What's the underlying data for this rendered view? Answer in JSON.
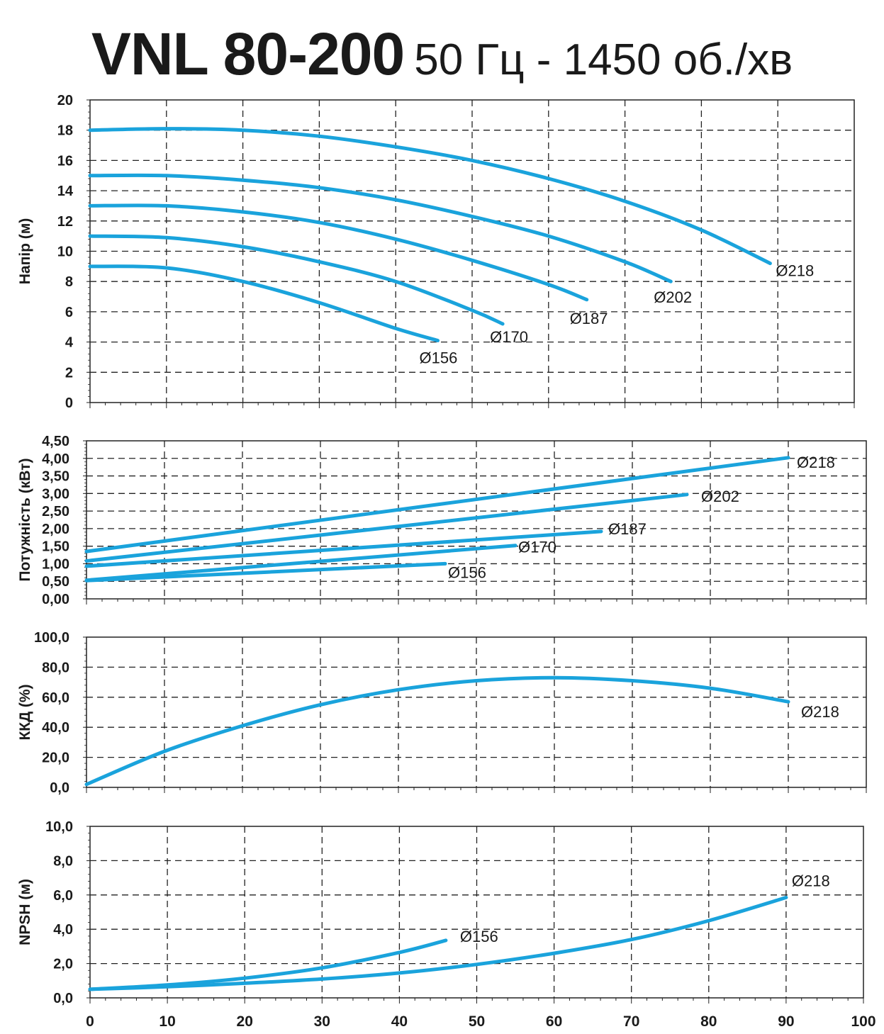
{
  "title": {
    "main": "VNL 80-200",
    "sub": "50 Гц - 1450 об./хв"
  },
  "colors": {
    "curve": "#1aa3dc",
    "grid": "#222222",
    "axis": "#222222",
    "text": "#1a1a1a"
  },
  "chart_data": [
    {
      "type": "line",
      "ylabel": "Напір (м)",
      "xlim": [
        0,
        100
      ],
      "ylim": [
        0,
        20
      ],
      "yticks": [
        "0",
        "2",
        "4",
        "6",
        "8",
        "10",
        "12",
        "14",
        "16",
        "18",
        "20"
      ],
      "grid": true,
      "series": [
        {
          "name": "Ø156",
          "x": [
            0,
            10,
            20,
            30,
            40,
            45.5
          ],
          "y": [
            9.0,
            8.9,
            8.0,
            6.6,
            4.9,
            4.1
          ]
        },
        {
          "name": "Ø170",
          "x": [
            0,
            10,
            20,
            30,
            40,
            50,
            54
          ],
          "y": [
            11.0,
            10.9,
            10.3,
            9.3,
            8.0,
            6.1,
            5.2
          ]
        },
        {
          "name": "Ø187",
          "x": [
            0,
            10,
            20,
            30,
            40,
            50,
            60,
            65
          ],
          "y": [
            13.0,
            13.0,
            12.6,
            11.9,
            10.8,
            9.4,
            7.8,
            6.8
          ]
        },
        {
          "name": "Ø202",
          "x": [
            0,
            10,
            20,
            30,
            40,
            50,
            60,
            70,
            76
          ],
          "y": [
            15.0,
            15.0,
            14.7,
            14.2,
            13.4,
            12.3,
            11.0,
            9.3,
            8.0
          ]
        },
        {
          "name": "Ø218",
          "x": [
            0,
            10,
            20,
            30,
            40,
            50,
            60,
            70,
            80,
            89
          ],
          "y": [
            18.0,
            18.1,
            18.0,
            17.6,
            16.9,
            16.0,
            14.8,
            13.3,
            11.4,
            9.2
          ]
        }
      ]
    },
    {
      "type": "line",
      "ylabel": "Потужність (кВт)",
      "xlim": [
        0,
        100
      ],
      "ylim": [
        0,
        4.5
      ],
      "yticks": [
        "0,00",
        "0,50",
        "1,00",
        "1,50",
        "2,00",
        "2,50",
        "3,00",
        "3,50",
        "4,00",
        "4,50"
      ],
      "grid": true,
      "series": [
        {
          "name": "Ø156",
          "x": [
            0,
            46
          ],
          "y": [
            0.52,
            1.0
          ]
        },
        {
          "name": "Ø170",
          "x": [
            0,
            55
          ],
          "y": [
            0.53,
            1.52
          ]
        },
        {
          "name": "Ø187",
          "x": [
            0,
            66
          ],
          "y": [
            0.93,
            1.92
          ]
        },
        {
          "name": "Ø202",
          "x": [
            0,
            77
          ],
          "y": [
            1.08,
            2.97
          ]
        },
        {
          "name": "Ø218",
          "x": [
            0,
            90
          ],
          "y": [
            1.35,
            4.02
          ]
        }
      ]
    },
    {
      "type": "line",
      "ylabel": "ККД (%)",
      "xlim": [
        0,
        100
      ],
      "ylim": [
        0,
        100
      ],
      "yticks": [
        "0,0",
        "20,0",
        "40,0",
        "60,0",
        "80,0",
        "100,0"
      ],
      "grid": true,
      "series": [
        {
          "name": "Ø218",
          "x": [
            0,
            10,
            20,
            30,
            40,
            50,
            60,
            70,
            80,
            90
          ],
          "y": [
            2,
            24,
            41,
            55,
            65,
            71,
            73,
            71,
            66,
            57
          ]
        }
      ]
    },
    {
      "type": "line",
      "ylabel": "NPSH (м)",
      "xlim": [
        0,
        100
      ],
      "ylim": [
        0,
        10
      ],
      "yticks": [
        "0,0",
        "2,0",
        "4,0",
        "6,0",
        "8,0",
        "10,0"
      ],
      "xticks": [
        "0",
        "10",
        "20",
        "30",
        "40",
        "50",
        "60",
        "70",
        "80",
        "90",
        "100"
      ],
      "grid": true,
      "series": [
        {
          "name": "Ø156",
          "x": [
            0,
            10,
            20,
            30,
            40,
            46
          ],
          "y": [
            0.5,
            0.75,
            1.15,
            1.75,
            2.65,
            3.35
          ]
        },
        {
          "name": "Ø218",
          "x": [
            0,
            10,
            20,
            30,
            40,
            50,
            60,
            70,
            80,
            90
          ],
          "y": [
            0.5,
            0.65,
            0.85,
            1.1,
            1.45,
            1.95,
            2.6,
            3.4,
            4.5,
            5.85
          ]
        }
      ]
    }
  ]
}
